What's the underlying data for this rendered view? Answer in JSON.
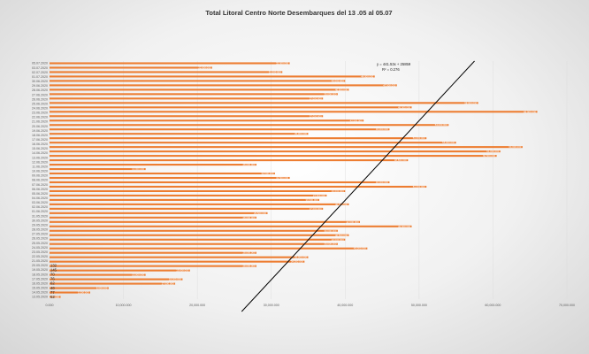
{
  "colors": {
    "bar": "#ED7D31",
    "trend": "#000000",
    "grid": "#D9D9D9"
  },
  "chart_data": {
    "type": "bar",
    "orientation": "horizontal",
    "title": "Total Litoral Centro Norte Desembarques del 13 .05 al  05.07",
    "xlabel": "",
    "ylabel": "",
    "xlim": [
      0,
      70000000
    ],
    "x_ticks": [
      "0.000",
      "10,000.000",
      "20,000.000",
      "30,000.000",
      "40,000.000",
      "50,000.000",
      "60,000.000",
      "70,000.000"
    ],
    "y_ticks": [
      "05.07.2020",
      "03.07.2020",
      "02.07.2020",
      "01.07.2020",
      "30.06.2020",
      "29.06.2020",
      "28.06.2020",
      "27.06.2020",
      "26.06.2020",
      "25.06.2020",
      "24.06.2020",
      "23.06.2020",
      "22.06.2020",
      "21.06.2020",
      "20.06.2020",
      "19.06.2020",
      "18.06.2020",
      "17.06.2020",
      "16.06.2020",
      "15.06.2020",
      "14.06.2020",
      "13.06.2020",
      "12.06.2020",
      "11.06.2020",
      "10.06.2020",
      "09.06.2020",
      "08.06.2020",
      "07.06.2020",
      "06.06.2020",
      "05.06.2020",
      "04.06.2020",
      "03.06.2020",
      "02.06.2020",
      "01.06.2020",
      "31.05.2020",
      "30.05.2020",
      "29.05.2020",
      "28.05.2020",
      "27.05.2020",
      "26.05.2020",
      "25.05.2020",
      "24.05.2020",
      "23.05.2020",
      "22.05.2020",
      "21.05.2020",
      "20.05.2020",
      "19.05.2020",
      "18.05.2020",
      "17.05.2020",
      "16.05.2020",
      "15.05.2020",
      "14.05.2020",
      "13.05.2020"
    ],
    "categories": [
      "05.07.2020",
      "04.07.2020",
      "03.07.2020",
      "02.07.2020",
      "01.07.2020",
      "30.06.2020",
      "29.06.2020",
      "28.06.2020",
      "27.06.2020",
      "26.06.2020",
      "25.06.2020",
      "24.06.2020",
      "23.06.2020",
      "22.06.2020",
      "21.06.2020",
      "20.06.2020",
      "19.06.2020",
      "18.06.2020",
      "17.06.2020",
      "16.06.2020",
      "15.06.2020",
      "14.06.2020",
      "13.06.2020",
      "12.06.2020",
      "11.06.2020",
      "10.06.2020",
      "09.06.2020",
      "08.06.2020",
      "07.06.2020",
      "06.06.2020",
      "05.06.2020",
      "04.06.2020",
      "03.06.2020",
      "02.06.2020",
      "01.06.2020",
      "31.05.2020",
      "30.05.2020",
      "29.05.2020",
      "28.05.2020",
      "27.05.2020",
      "26.05.2020",
      "25.05.2020",
      "24.05.2020",
      "23.05.2020",
      "22.05.2020",
      "21.05.2020",
      "20.05.2020",
      "19.05.2020",
      "18.05.2020",
      "17.05.2020",
      "16.05.2020",
      "15.05.2020",
      "14.05.2020",
      "13.05.2020"
    ],
    "values": [
      32500000,
      22000000,
      31500000,
      44000000,
      40000000,
      47000000,
      40500000,
      39000000,
      37000000,
      58000000,
      49000000,
      66000000,
      37000000,
      42500000,
      54000000,
      46000000,
      35000000,
      51000000,
      55000000,
      64000000,
      61000000,
      60500000,
      48500000,
      28000000,
      13000000,
      30500000,
      32500000,
      46000000,
      51000000,
      40000000,
      37500000,
      36500000,
      40500000,
      37000000,
      29500000,
      28000000,
      42000000,
      49000000,
      39000000,
      40500000,
      40000000,
      39000000,
      43000000,
      28000000,
      35000000,
      34500000,
      28000000,
      19000000,
      13000000,
      18000000,
      17000000,
      8000000,
      5500000,
      1500000
    ],
    "small_labels": [
      "132",
      "145",
      "70",
      "76",
      "62",
      "40",
      "77",
      "52"
    ],
    "trendline": {
      "equation": "y = 441.53x + 25859",
      "r2": "R² = 0.276"
    }
  }
}
